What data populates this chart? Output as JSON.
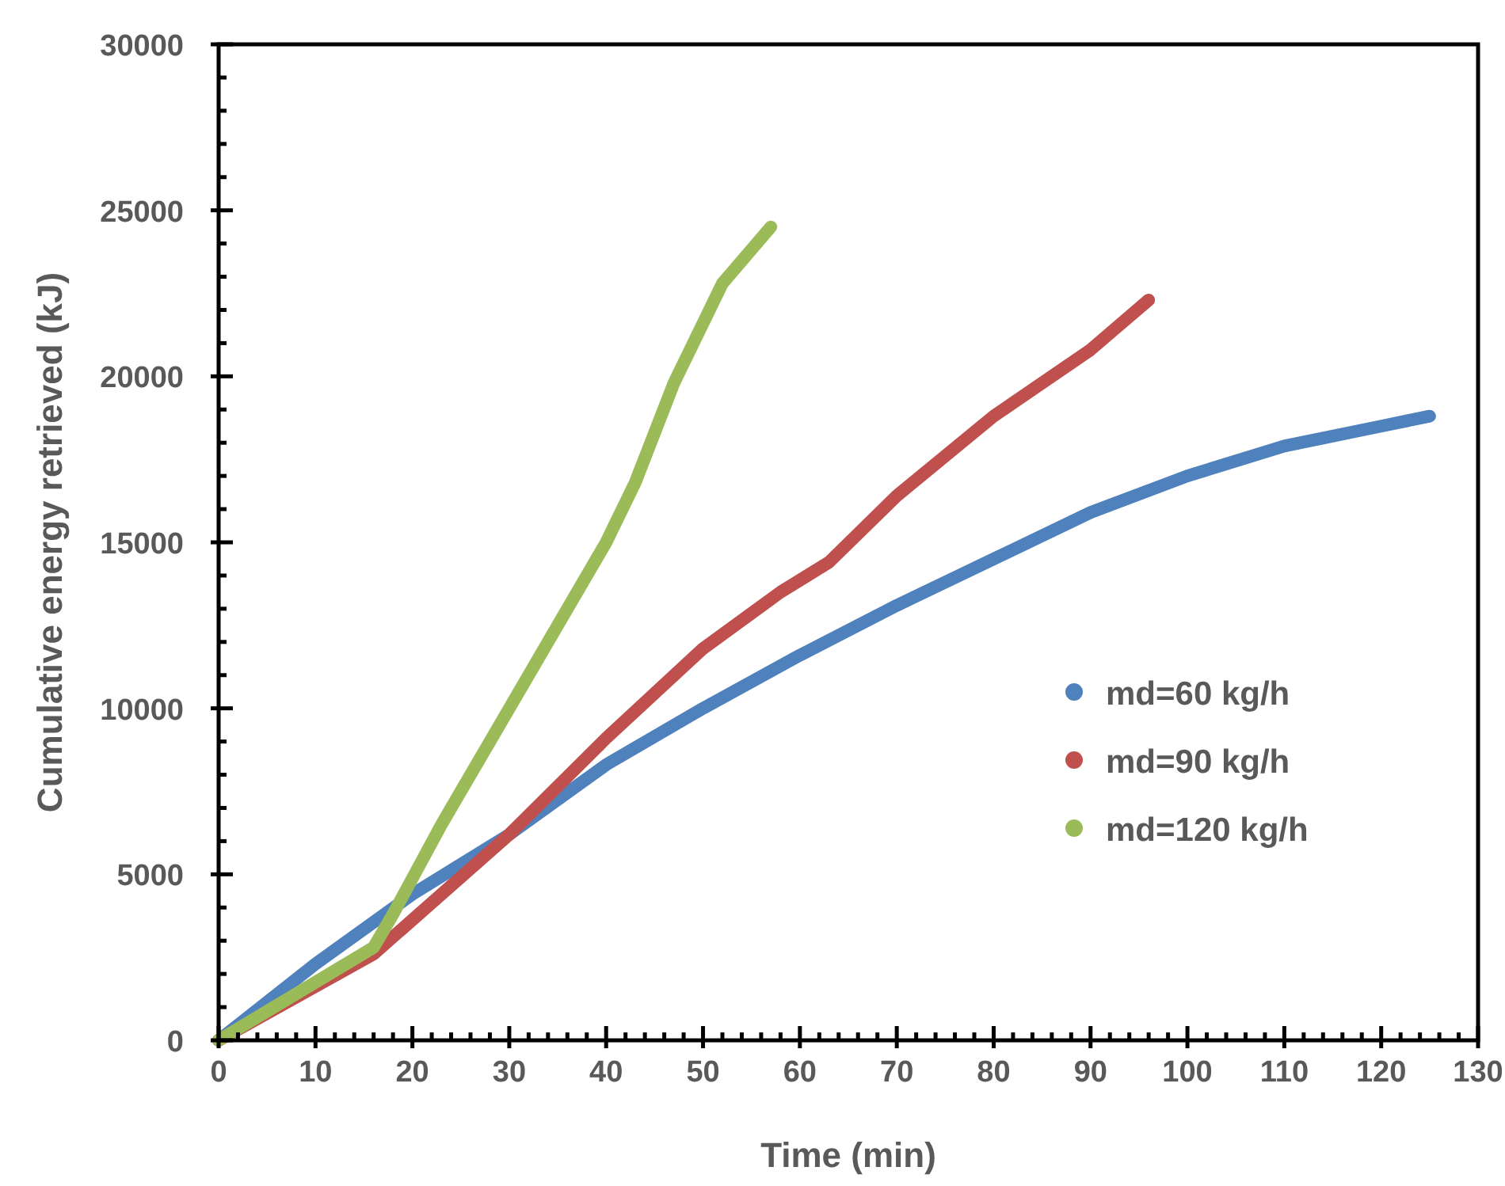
{
  "chart_data": {
    "type": "line",
    "xlabel": "Time (min)",
    "ylabel": "Cumulative energy retrieved (kJ)",
    "xlim": [
      0,
      130
    ],
    "ylim": [
      0,
      30000
    ],
    "xticks": [
      0,
      10,
      20,
      30,
      40,
      50,
      60,
      70,
      80,
      90,
      100,
      110,
      120,
      130
    ],
    "yticks": [
      0,
      5000,
      10000,
      15000,
      20000,
      25000,
      30000
    ],
    "grid": false,
    "legend": "bottom right",
    "marker": "none",
    "line_style": "solid",
    "series": [
      {
        "name": "md=60 kg/h",
        "color": "#4f81bd",
        "x": [
          0,
          10,
          20,
          30,
          40,
          50,
          60,
          70,
          80,
          90,
          100,
          110,
          120,
          125
        ],
        "values": [
          0,
          2300,
          4400,
          6200,
          8300,
          10000,
          11600,
          13100,
          14500,
          15900,
          17000,
          17900,
          18500,
          18800
        ]
      },
      {
        "name": "md=90 kg/h",
        "color": "#c0504d",
        "x": [
          0,
          16,
          30,
          40,
          50,
          58,
          63,
          70,
          80,
          90,
          96
        ],
        "values": [
          0,
          2600,
          6200,
          9100,
          11800,
          13500,
          14400,
          16400,
          18800,
          20800,
          22300
        ]
      },
      {
        "name": "md=120 kg/h",
        "color": "#9bbb59",
        "x": [
          0,
          16,
          18,
          23,
          30,
          40,
          43,
          47,
          52,
          57
        ],
        "values": [
          0,
          2800,
          3800,
          6500,
          10000,
          15000,
          16800,
          19800,
          22800,
          24500
        ]
      }
    ]
  }
}
